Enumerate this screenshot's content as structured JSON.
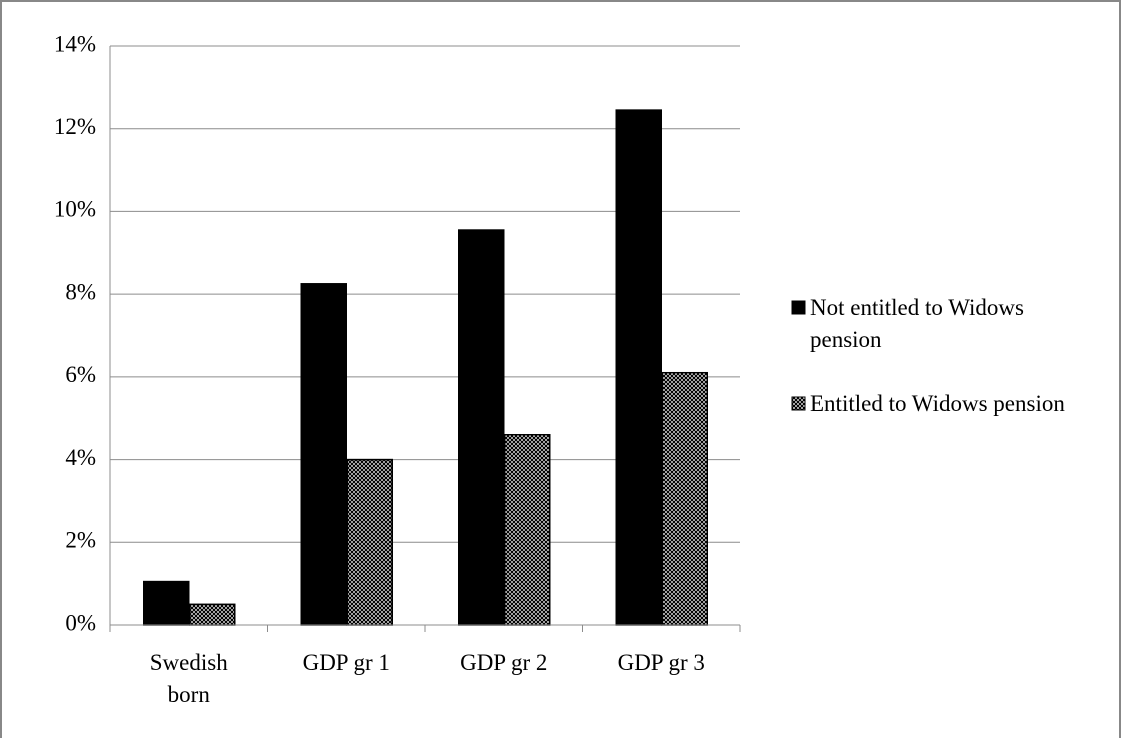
{
  "chart_data": {
    "type": "bar",
    "categories": [
      "Swedish born",
      "GDP gr 1",
      "GDP gr 2",
      "GDP gr 3"
    ],
    "series": [
      {
        "name": "Not entitled to Widows pension",
        "color": "#000000",
        "hatch": false,
        "values": [
          1.05,
          8.25,
          9.55,
          12.45
        ]
      },
      {
        "name": "Entitled to Widows pension",
        "color": "#000000",
        "hatch": true,
        "values": [
          0.5,
          4.0,
          4.6,
          6.1
        ]
      }
    ],
    "ylim": [
      0,
      14
    ],
    "yticks": [
      {
        "value": 0,
        "label": "0%"
      },
      {
        "value": 2,
        "label": "2%"
      },
      {
        "value": 4,
        "label": "4%"
      },
      {
        "value": 6,
        "label": "6%"
      },
      {
        "value": 8,
        "label": "8%"
      },
      {
        "value": 10,
        "label": "10%"
      },
      {
        "value": 12,
        "label": "12%"
      },
      {
        "value": 14,
        "label": "14%"
      }
    ],
    "grid": true,
    "legend": "right"
  }
}
